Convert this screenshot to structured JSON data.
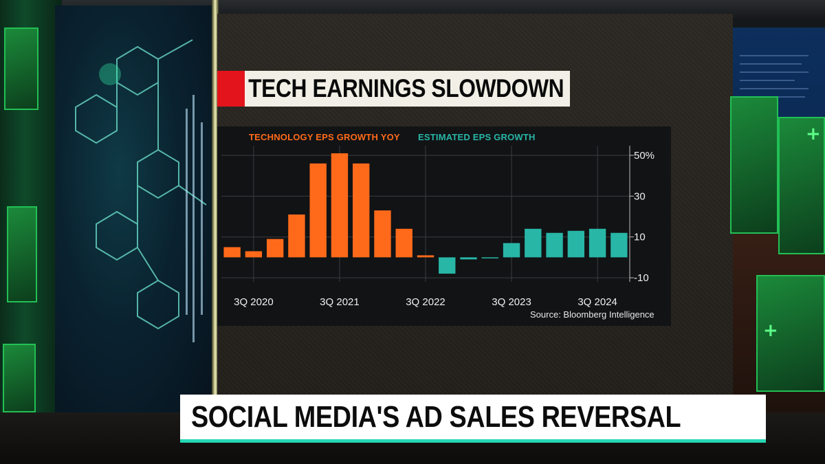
{
  "headline": {
    "text": "TECH EARNINGS SLOWDOWN"
  },
  "lower_third": {
    "text": "SOCIAL MEDIA'S AD SALES REVERSAL"
  },
  "colors": {
    "actual": "#ff6a1a",
    "estimated": "#28b6a6",
    "headline_accent": "#e3141c",
    "lower_third_rule": "#27d6b4",
    "chart_background": "#111315"
  },
  "chart_data": {
    "type": "bar",
    "legend": [
      {
        "label": "TECHNOLOGY EPS GROWTH YOY",
        "color": "#ff6a1a"
      },
      {
        "label": "ESTIMATED EPS GROWTH",
        "color": "#28b6a6"
      }
    ],
    "x_tick_labels": [
      "3Q 2020",
      "3Q 2021",
      "3Q 2022",
      "3Q 2023",
      "3Q 2024"
    ],
    "y_tick_labels": [
      "50%",
      "30",
      "10",
      "-10"
    ],
    "y_ticks": [
      50,
      30,
      10,
      -10
    ],
    "ylim": [
      -12,
      52
    ],
    "grid": true,
    "source": "Source: Bloomberg Intelligence",
    "series": [
      {
        "name": "TECHNOLOGY EPS GROWTH YOY",
        "color": "#ff6a1a",
        "values": [
          5,
          3,
          9,
          21,
          46,
          51,
          46,
          23,
          14,
          1,
          null,
          null,
          null,
          null,
          null,
          null,
          null,
          null,
          null
        ]
      },
      {
        "name": "ESTIMATED EPS GROWTH",
        "color": "#28b6a6",
        "values": [
          null,
          null,
          null,
          null,
          null,
          null,
          null,
          null,
          null,
          null,
          -8,
          -1,
          0,
          7,
          14,
          12,
          13,
          14,
          12
        ]
      }
    ]
  }
}
